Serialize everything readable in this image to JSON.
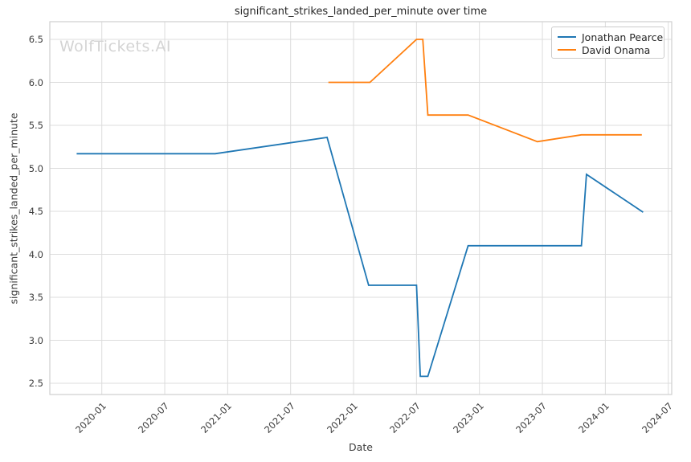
{
  "watermark": "WolfTickets.AI",
  "chart_data": {
    "type": "line",
    "title": "significant_strikes_landed_per_minute over time",
    "xlabel": "Date",
    "ylabel": "significant_strikes_landed_per_minute",
    "x_tick_labels": [
      "2020-01",
      "2020-07",
      "2021-01",
      "2021-07",
      "2022-01",
      "2022-07",
      "2023-01",
      "2023-07",
      "2024-01",
      "2024-07"
    ],
    "y_ticks": [
      2.5,
      3.0,
      3.5,
      4.0,
      4.5,
      5.0,
      5.5,
      6.0,
      6.5
    ],
    "ylim": [
      2.37,
      6.71
    ],
    "xlim_years": [
      2019.59,
      2024.53
    ],
    "grid": true,
    "legend_position": "upper right",
    "colors": {
      "grid": "#dcdcdc",
      "spine": "#cfcfcf"
    },
    "series": [
      {
        "name": "Jonathan Pearce",
        "color": "#1f77b4",
        "points": [
          [
            2019.8,
            5.17
          ],
          [
            2020.9,
            5.17
          ],
          [
            2021.79,
            5.36
          ],
          [
            2022.12,
            3.64
          ],
          [
            2022.5,
            3.64
          ],
          [
            2022.53,
            2.58
          ],
          [
            2022.59,
            2.58
          ],
          [
            2022.91,
            4.1
          ],
          [
            2023.81,
            4.1
          ],
          [
            2023.85,
            4.93
          ],
          [
            2024.3,
            4.49
          ]
        ]
      },
      {
        "name": "David Onama",
        "color": "#ff7f0e",
        "points": [
          [
            2021.8,
            6.0
          ],
          [
            2022.13,
            6.0
          ],
          [
            2022.5,
            6.5
          ],
          [
            2022.55,
            6.5
          ],
          [
            2022.59,
            5.62
          ],
          [
            2022.91,
            5.62
          ],
          [
            2023.46,
            5.31
          ],
          [
            2023.81,
            5.39
          ],
          [
            2024.29,
            5.39
          ]
        ]
      }
    ]
  }
}
